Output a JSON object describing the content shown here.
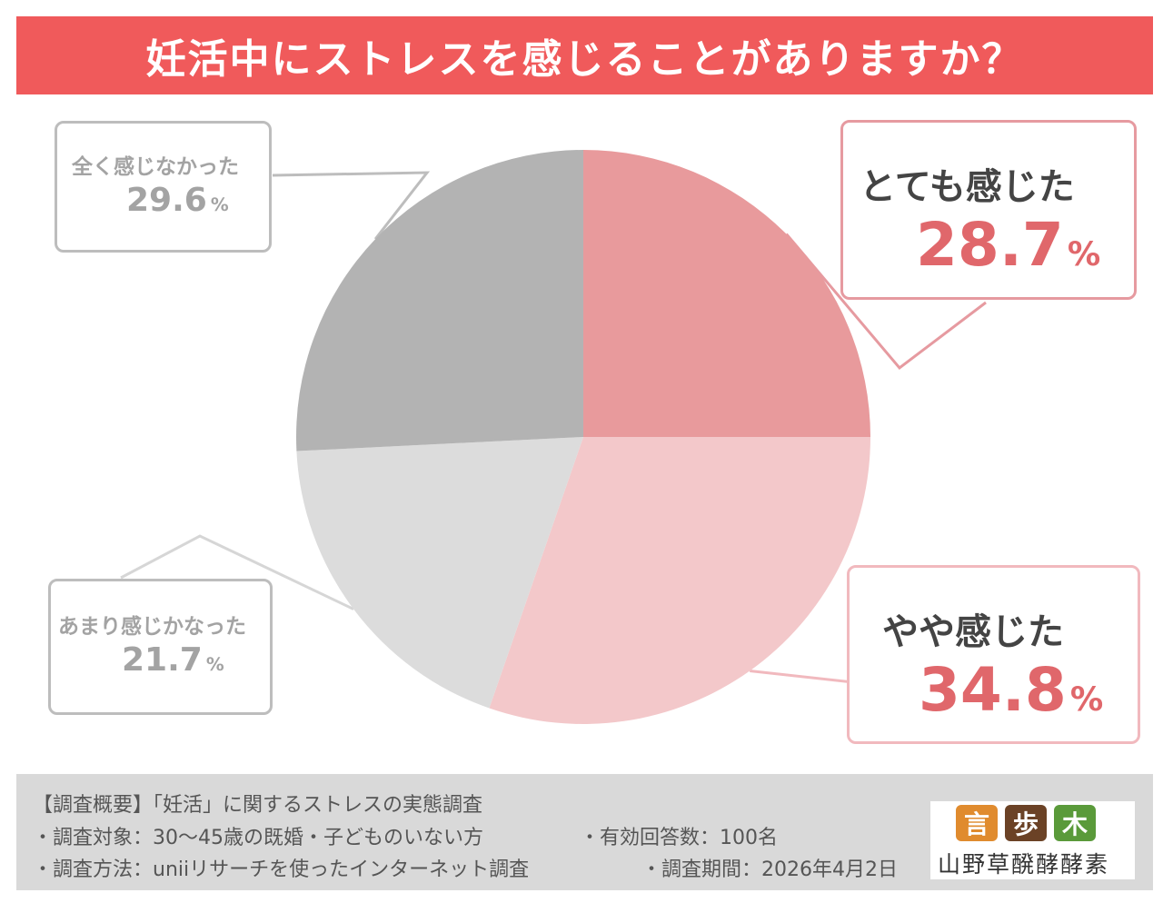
{
  "title": "妊活中にストレスを感じることがありますか？",
  "chart_data": {
    "type": "pie",
    "title": "妊活中にストレスを感じることがありますか？",
    "categories": [
      "とても感じた",
      "やや感じた",
      "あまり感じかなった",
      "全く感じなかった"
    ],
    "values": [
      28.7,
      34.8,
      21.7,
      29.6
    ],
    "unit": "%",
    "value_labels": [
      "28.7",
      "34.8",
      "21.7",
      "29.6"
    ],
    "colors": [
      "#e89a9c",
      "#f3c8ca",
      "#dcdcdc",
      "#b3b3b3"
    ],
    "start": "12 o'clock, clockwise"
  },
  "callouts": {
    "totemo": {
      "label": "とても感じた",
      "value": "28.7",
      "unit": "%"
    },
    "yaya": {
      "label": "やや感じた",
      "value": "34.8",
      "unit": "%"
    },
    "amari": {
      "label": "あまり感じかなった",
      "value": "21.7",
      "unit": "%"
    },
    "zenzen": {
      "label": "全く感じなかった",
      "value": "29.6",
      "unit": "%"
    }
  },
  "footer": {
    "line1": "【調査概要】「妊活」に関するストレスの実態調査",
    "line2a": "・調査対象：30〜45歳の既婚・子どものいない方",
    "line2b": "・有効回答数：100名",
    "line3a": "・調査方法：uniiリサーチを使ったインターネット調査",
    "line3b": "・調査期間：2026年4月2日"
  },
  "logo": {
    "marks": [
      "言",
      "歩",
      "木"
    ],
    "mark_colors": [
      "#e08b2e",
      "#6b4226",
      "#5a9a3a"
    ],
    "brand": "山野草醗酵酵素"
  }
}
